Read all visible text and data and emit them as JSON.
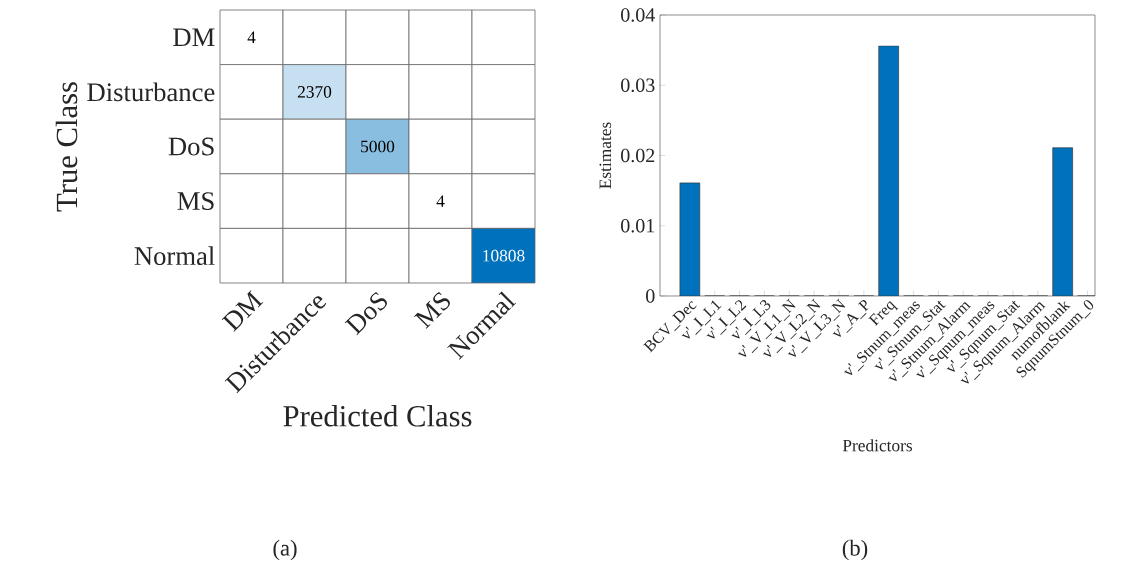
{
  "chart_data": [
    {
      "type": "heatmap",
      "categories": [
        "DM",
        "Disturbance",
        "DoS",
        "MS",
        "Normal"
      ],
      "y_categories": [
        "DM",
        "Disturbance",
        "DoS",
        "MS",
        "Normal"
      ],
      "xlabel": "Predicted Class",
      "ylabel": "True Class",
      "data_labels": true,
      "color": "#0072bd",
      "cells": [
        [
          4,
          null,
          null,
          null,
          null
        ],
        [
          null,
          2370,
          null,
          null,
          null
        ],
        [
          null,
          null,
          5000,
          null,
          null
        ],
        [
          null,
          null,
          null,
          4,
          null
        ],
        [
          null,
          null,
          null,
          null,
          10808
        ]
      ],
      "annotations": [
        "(a)"
      ]
    },
    {
      "type": "bar",
      "categories": [
        "BCV_Dec",
        "v'_I_L1",
        "v'_I_L2",
        "v'_I_L3",
        "v'_V_L1_N",
        "v'_V_L2_N",
        "v'_V_L3_N",
        "v'_A_P",
        "Freq",
        "v'_Stnum_meas",
        "v'_Stnum_Stat",
        "v'_Stnum_Alarm",
        "v'_Sqnum_meas",
        "v'_Sqnum_Stat",
        "v'_Sqnum_Alarm",
        "numofblank",
        "SqnumStnum_0"
      ],
      "values": [
        0.0161,
        0,
        0,
        0,
        0,
        0,
        0,
        0,
        0.0356,
        0,
        0,
        0,
        0,
        0,
        0,
        0.0211,
        0
      ],
      "color": "#0072bd",
      "xlabel": "Predictors",
      "ylabel": "Estimates",
      "ylim": [
        0,
        0.04
      ],
      "yticks": [
        0,
        0.01,
        0.02,
        0.03,
        0.04
      ],
      "annotations": [
        "(b)"
      ]
    }
  ]
}
